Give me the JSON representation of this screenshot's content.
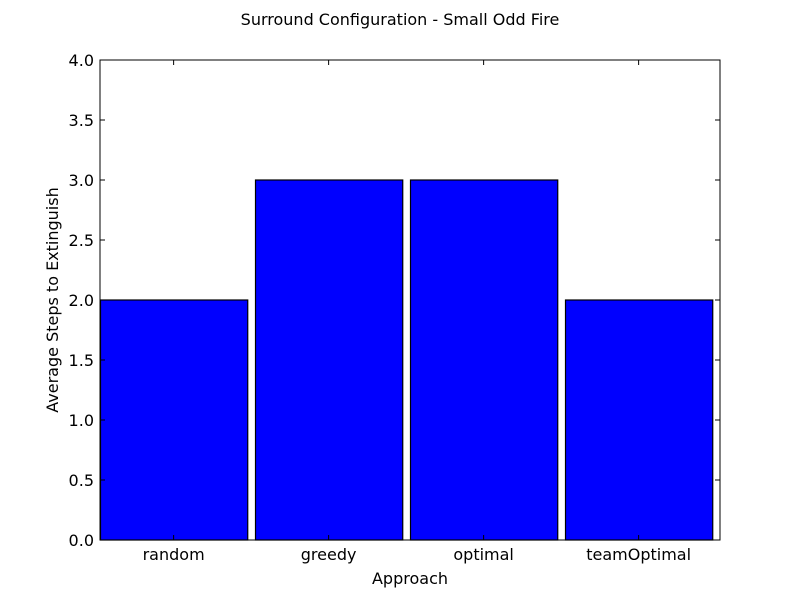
{
  "chart_data": {
    "type": "bar",
    "title": "Surround Configuration - Small Odd Fire",
    "xlabel": "Approach",
    "ylabel": "Average Steps to Extinguish",
    "categories": [
      "random",
      "greedy",
      "optimal",
      "teamOptimal"
    ],
    "values": [
      2.0,
      3.0,
      3.0,
      2.0
    ],
    "ylim": [
      0,
      4.0
    ],
    "yticks": [
      "0.0",
      "0.5",
      "1.0",
      "1.5",
      "2.0",
      "2.5",
      "3.0",
      "3.5",
      "4.0"
    ],
    "grid": false,
    "legend": "none",
    "bar_color": "#0000ff",
    "edge_color": "#000000"
  }
}
